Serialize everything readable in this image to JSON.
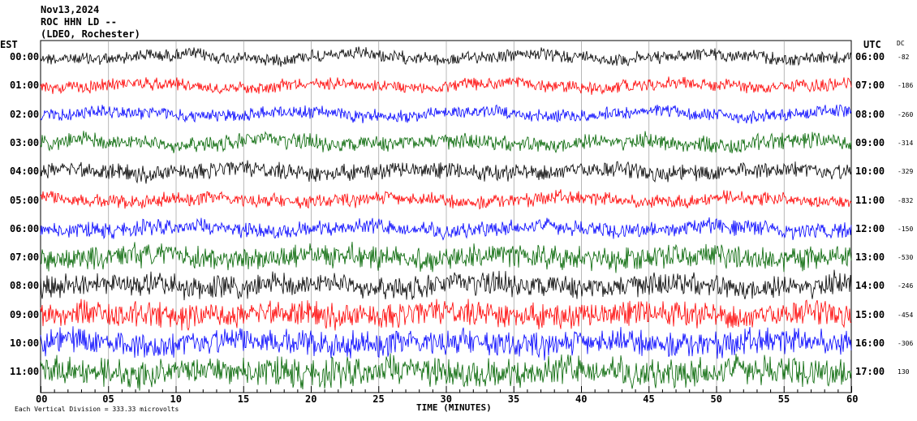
{
  "header": {
    "date": "Nov13,2024",
    "station": "ROC HHN LD --",
    "network": "(LDEO, Rochester)"
  },
  "left_tz": "EST",
  "right_tz": "UTC",
  "dc_label": "DC",
  "footer": {
    "scale_note": "Each Vertical Division =  333.33 microvolts"
  },
  "chart_data": {
    "type": "line",
    "xlabel": "TIME (MINUTES)",
    "xlim": [
      0,
      60
    ],
    "x_ticks": [
      0,
      5,
      10,
      15,
      20,
      25,
      30,
      35,
      40,
      45,
      50,
      55,
      60
    ],
    "x_tick_labels": [
      "00",
      "05",
      "10",
      "15",
      "20",
      "25",
      "30",
      "35",
      "40",
      "45",
      "50",
      "55",
      "60"
    ],
    "grid": true,
    "series": [
      {
        "left_label": "00:00",
        "right_label": "06:00",
        "dc": "-82",
        "color": "#000000",
        "amplitude": 1.0
      },
      {
        "left_label": "01:00",
        "right_label": "07:00",
        "dc": "-186",
        "color": "#ff0000",
        "amplitude": 1.0
      },
      {
        "left_label": "02:00",
        "right_label": "08:00",
        "dc": "-260",
        "color": "#0000ff",
        "amplitude": 1.0
      },
      {
        "left_label": "03:00",
        "right_label": "09:00",
        "dc": "-314",
        "color": "#006400",
        "amplitude": 1.3
      },
      {
        "left_label": "04:00",
        "right_label": "10:00",
        "dc": "-329",
        "color": "#000000",
        "amplitude": 1.3
      },
      {
        "left_label": "05:00",
        "right_label": "11:00",
        "dc": "-832",
        "color": "#ff0000",
        "amplitude": 1.1
      },
      {
        "left_label": "06:00",
        "right_label": "12:00",
        "dc": "-150",
        "color": "#0000ff",
        "amplitude": 1.2
      },
      {
        "left_label": "07:00",
        "right_label": "13:00",
        "dc": "-530",
        "color": "#006400",
        "amplitude": 1.9
      },
      {
        "left_label": "08:00",
        "right_label": "14:00",
        "dc": "-246",
        "color": "#000000",
        "amplitude": 1.9
      },
      {
        "left_label": "09:00",
        "right_label": "15:00",
        "dc": "-454",
        "color": "#ff0000",
        "amplitude": 2.0
      },
      {
        "left_label": "10:00",
        "right_label": "16:00",
        "dc": "-306",
        "color": "#0000ff",
        "amplitude": 2.1
      },
      {
        "left_label": "11:00",
        "right_label": "17:00",
        "dc": "130",
        "color": "#006400",
        "amplitude": 2.3
      }
    ]
  }
}
